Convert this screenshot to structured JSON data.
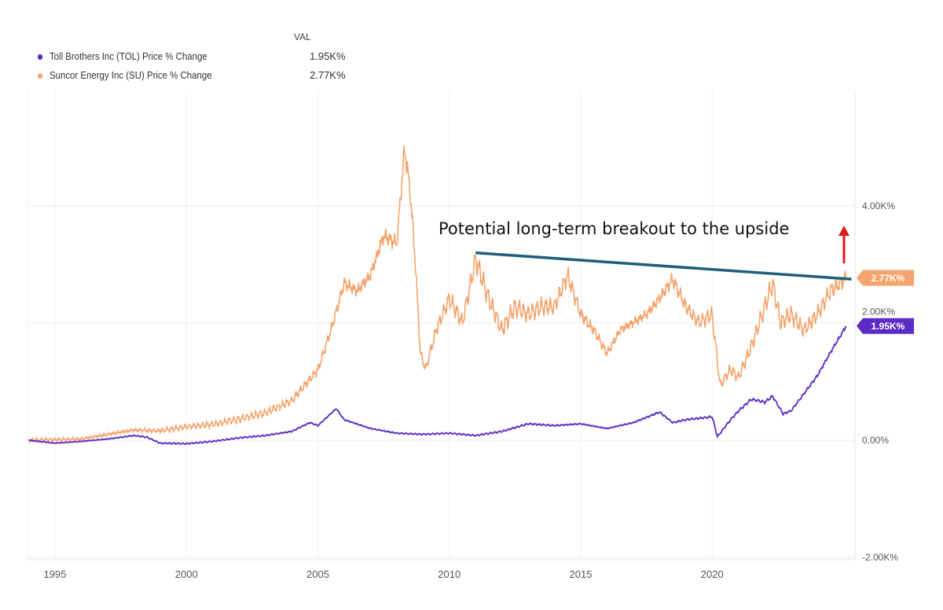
{
  "chart_data": {
    "type": "line",
    "title": "",
    "xlabel": "",
    "ylabel": "",
    "x_ticks": [
      "1995",
      "2000",
      "2005",
      "2010",
      "2015",
      "2020"
    ],
    "y_ticks": [
      "4.00K%",
      "2.00K%",
      "0.00%",
      "-2.00K%"
    ],
    "y_tick_values": [
      4000,
      2000,
      0,
      -2000
    ],
    "xlim": [
      1994,
      2025.3
    ],
    "ylim": [
      -2000,
      6500
    ],
    "grid": true,
    "legend_position": "top-left",
    "legend_header": "VAL",
    "series": [
      {
        "name": "Toll Brothers Inc (TOL) Price % Change",
        "last_value": "1.95K%",
        "color": "#5b2bc4",
        "x": [
          1994,
          1995,
          1996,
          1997,
          1998,
          1998.5,
          1999,
          2000,
          2001,
          2002,
          2003,
          2004,
          2004.7,
          2005,
          2005.7,
          2006,
          2007,
          2008,
          2009,
          2010,
          2011,
          2012,
          2013,
          2014,
          2015,
          2016,
          2017,
          2018,
          2018.5,
          2019,
          2020,
          2020.2,
          2020.7,
          2021,
          2021.5,
          2022,
          2022.3,
          2022.7,
          2023,
          2023.5,
          2024,
          2024.5,
          2025.1
        ],
        "y": [
          0,
          -50,
          -20,
          20,
          80,
          50,
          -50,
          -60,
          -20,
          40,
          80,
          150,
          300,
          250,
          540,
          350,
          200,
          120,
          100,
          120,
          80,
          150,
          280,
          250,
          280,
          200,
          300,
          480,
          300,
          350,
          400,
          60,
          350,
          500,
          700,
          650,
          750,
          450,
          500,
          800,
          1100,
          1500,
          1950
        ]
      },
      {
        "name": "Suncor Energy Inc (SU) Price % Change",
        "last_value": "2.77K%",
        "color": "#f4a46c",
        "x": [
          1994,
          1996,
          1997,
          1998,
          1999,
          2000,
          2001,
          2002,
          2003,
          2004,
          2004.5,
          2005,
          2005.5,
          2006,
          2006.5,
          2007,
          2007.5,
          2008,
          2008.3,
          2008.5,
          2008.7,
          2008.9,
          2009.1,
          2009.5,
          2010,
          2010.5,
          2011,
          2011.5,
          2012,
          2012.5,
          2013,
          2013.5,
          2014,
          2014.5,
          2015,
          2015.5,
          2016,
          2016.5,
          2017,
          2017.5,
          2018,
          2018.5,
          2019,
          2019.5,
          2020,
          2020.3,
          2020.7,
          2021,
          2021.5,
          2022,
          2022.3,
          2022.6,
          2023,
          2023.5,
          2024,
          2024.5,
          2025.1
        ],
        "y": [
          0,
          20,
          100,
          175,
          160,
          230,
          270,
          360,
          470,
          670,
          940,
          1200,
          1880,
          2680,
          2550,
          2820,
          3490,
          3360,
          4970,
          4300,
          3090,
          1480,
          1210,
          1880,
          2420,
          2010,
          3090,
          2420,
          1880,
          2280,
          2150,
          2280,
          2280,
          2820,
          2150,
          1880,
          1480,
          1880,
          2010,
          2150,
          2420,
          2750,
          2280,
          2010,
          2150,
          940,
          1210,
          1070,
          1610,
          2280,
          2680,
          2010,
          2150,
          1880,
          2150,
          2550,
          2770
        ]
      }
    ],
    "annotations": [
      {
        "text": "Potential long-term breakout to the upside",
        "type": "trendline",
        "from": [
          2011,
          3200
        ],
        "to": [
          2025.3,
          2750
        ],
        "color": "#1f5f7a"
      },
      {
        "type": "arrow-up",
        "color": "#e01b1b"
      }
    ]
  }
}
